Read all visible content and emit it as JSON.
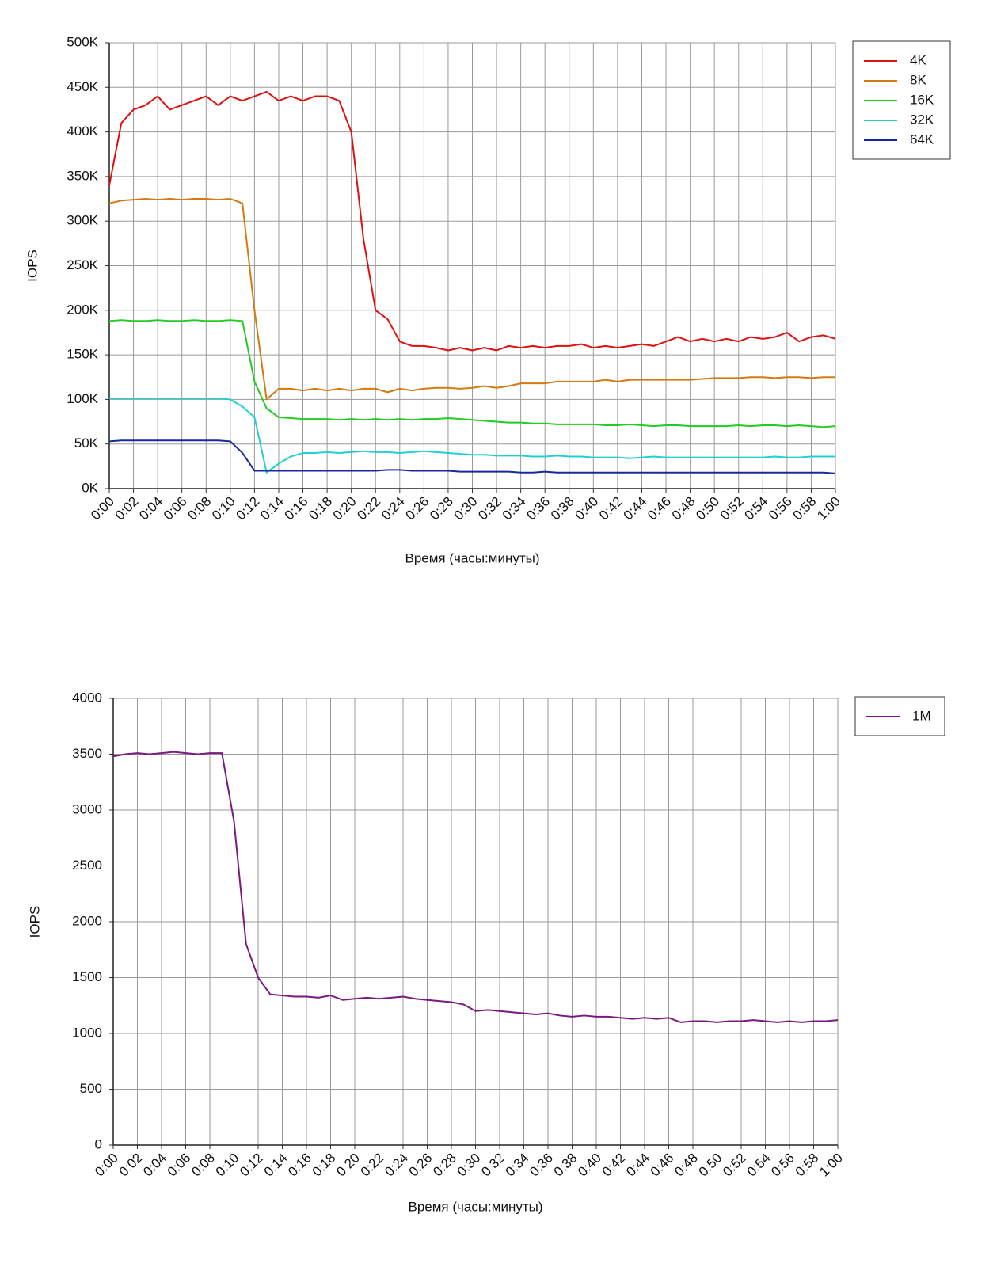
{
  "chart_data": [
    {
      "type": "line",
      "ylabel": "IOPS",
      "xlabel": "Время (часы:минуты)",
      "grid": true,
      "legend": "right",
      "x": [
        0,
        1,
        2,
        3,
        4,
        5,
        6,
        7,
        8,
        9,
        10,
        11,
        12,
        13,
        14,
        15,
        16,
        17,
        18,
        19,
        20,
        21,
        22,
        23,
        24,
        25,
        26,
        27,
        28,
        29,
        30,
        31,
        32,
        33,
        34,
        35,
        36,
        37,
        38,
        39,
        40,
        41,
        42,
        43,
        44,
        45,
        46,
        47,
        48,
        49,
        50,
        51,
        52,
        53,
        54,
        55,
        56,
        57,
        58,
        59,
        60
      ],
      "xlim": [
        0,
        60
      ],
      "xticks": [
        {
          "value": 0,
          "label": "0:00"
        },
        {
          "value": 2,
          "label": "0:02"
        },
        {
          "value": 4,
          "label": "0:04"
        },
        {
          "value": 6,
          "label": "0:06"
        },
        {
          "value": 8,
          "label": "0:08"
        },
        {
          "value": 10,
          "label": "0:10"
        },
        {
          "value": 12,
          "label": "0:12"
        },
        {
          "value": 14,
          "label": "0:14"
        },
        {
          "value": 16,
          "label": "0:16"
        },
        {
          "value": 18,
          "label": "0:18"
        },
        {
          "value": 20,
          "label": "0:20"
        },
        {
          "value": 22,
          "label": "0:22"
        },
        {
          "value": 24,
          "label": "0:24"
        },
        {
          "value": 26,
          "label": "0:26"
        },
        {
          "value": 28,
          "label": "0:28"
        },
        {
          "value": 30,
          "label": "0:30"
        },
        {
          "value": 32,
          "label": "0:32"
        },
        {
          "value": 34,
          "label": "0:34"
        },
        {
          "value": 36,
          "label": "0:36"
        },
        {
          "value": 38,
          "label": "0:38"
        },
        {
          "value": 40,
          "label": "0:40"
        },
        {
          "value": 42,
          "label": "0:42"
        },
        {
          "value": 44,
          "label": "0:44"
        },
        {
          "value": 46,
          "label": "0:46"
        },
        {
          "value": 48,
          "label": "0:48"
        },
        {
          "value": 50,
          "label": "0:50"
        },
        {
          "value": 52,
          "label": "0:52"
        },
        {
          "value": 54,
          "label": "0:54"
        },
        {
          "value": 56,
          "label": "0:56"
        },
        {
          "value": 58,
          "label": "0:58"
        },
        {
          "value": 60,
          "label": "1:00"
        }
      ],
      "ylim": [
        0,
        500000
      ],
      "yticks": [
        {
          "value": 0,
          "label": "0K"
        },
        {
          "value": 50000,
          "label": "50K"
        },
        {
          "value": 100000,
          "label": "100K"
        },
        {
          "value": 150000,
          "label": "150K"
        },
        {
          "value": 200000,
          "label": "200K"
        },
        {
          "value": 250000,
          "label": "250K"
        },
        {
          "value": 300000,
          "label": "300K"
        },
        {
          "value": 350000,
          "label": "350K"
        },
        {
          "value": 400000,
          "label": "400K"
        },
        {
          "value": 450000,
          "label": "450K"
        },
        {
          "value": 500000,
          "label": "500K"
        }
      ],
      "series": [
        {
          "name": "4K",
          "color": "#e01010",
          "values": [
            340000,
            410000,
            425000,
            430000,
            440000,
            425000,
            430000,
            435000,
            440000,
            430000,
            440000,
            435000,
            440000,
            445000,
            435000,
            440000,
            435000,
            440000,
            440000,
            435000,
            400000,
            280000,
            200000,
            190000,
            165000,
            160000,
            160000,
            158000,
            155000,
            158000,
            155000,
            158000,
            155000,
            160000,
            158000,
            160000,
            158000,
            160000,
            160000,
            162000,
            158000,
            160000,
            158000,
            160000,
            162000,
            160000,
            165000,
            170000,
            165000,
            168000,
            165000,
            168000,
            165000,
            170000,
            168000,
            170000,
            175000,
            165000,
            170000,
            172000,
            168000
          ]
        },
        {
          "name": "8K",
          "color": "#d47a10",
          "values": [
            320000,
            323000,
            324000,
            325000,
            324000,
            325000,
            324000,
            325000,
            325000,
            324000,
            325000,
            320000,
            200000,
            100000,
            112000,
            112000,
            110000,
            112000,
            110000,
            112000,
            110000,
            112000,
            112000,
            108000,
            112000,
            110000,
            112000,
            113000,
            113000,
            112000,
            113000,
            115000,
            113000,
            115000,
            118000,
            118000,
            118000,
            120000,
            120000,
            120000,
            120000,
            122000,
            120000,
            122000,
            122000,
            122000,
            122000,
            122000,
            122000,
            123000,
            124000,
            124000,
            124000,
            125000,
            125000,
            124000,
            125000,
            125000,
            124000,
            125000,
            125000
          ]
        },
        {
          "name": "16K",
          "color": "#22cc22",
          "values": [
            188000,
            189000,
            188000,
            188000,
            189000,
            188000,
            188000,
            189000,
            188000,
            188000,
            189000,
            188000,
            120000,
            90000,
            80000,
            79000,
            78000,
            78000,
            78000,
            77000,
            78000,
            77000,
            78000,
            77000,
            78000,
            77000,
            78000,
            78000,
            79000,
            78000,
            77000,
            76000,
            75000,
            74000,
            74000,
            73000,
            73000,
            72000,
            72000,
            72000,
            72000,
            71000,
            71000,
            72000,
            71000,
            70000,
            71000,
            71000,
            70000,
            70000,
            70000,
            70000,
            71000,
            70000,
            71000,
            71000,
            70000,
            71000,
            70000,
            69000,
            70000
          ]
        },
        {
          "name": "32K",
          "color": "#22d0d0",
          "values": [
            101000,
            101000,
            101000,
            101000,
            101000,
            101000,
            101000,
            101000,
            101000,
            101000,
            100000,
            92000,
            80000,
            18000,
            28000,
            36000,
            40000,
            40000,
            41000,
            40000,
            41000,
            42000,
            41000,
            41000,
            40000,
            41000,
            42000,
            41000,
            40000,
            39000,
            38000,
            38000,
            37000,
            37000,
            37000,
            36000,
            36000,
            37000,
            36000,
            36000,
            35000,
            35000,
            35000,
            34000,
            35000,
            36000,
            35000,
            35000,
            35000,
            35000,
            35000,
            35000,
            35000,
            35000,
            35000,
            36000,
            35000,
            35000,
            36000,
            36000,
            36000
          ]
        },
        {
          "name": "64K",
          "color": "#1a28a0",
          "values": [
            53000,
            54000,
            54000,
            54000,
            54000,
            54000,
            54000,
            54000,
            54000,
            54000,
            53000,
            40000,
            20000,
            20000,
            20000,
            20000,
            20000,
            20000,
            20000,
            20000,
            20000,
            20000,
            20000,
            21000,
            21000,
            20000,
            20000,
            20000,
            20000,
            19000,
            19000,
            19000,
            19000,
            19000,
            18000,
            18000,
            19000,
            18000,
            18000,
            18000,
            18000,
            18000,
            18000,
            18000,
            18000,
            18000,
            18000,
            18000,
            18000,
            18000,
            18000,
            18000,
            18000,
            18000,
            18000,
            18000,
            18000,
            18000,
            18000,
            18000,
            17000
          ]
        }
      ]
    },
    {
      "type": "line",
      "ylabel": "IOPS",
      "xlabel": "Время (часы:минуты)",
      "grid": true,
      "legend": "right",
      "x": [
        0,
        1,
        2,
        3,
        4,
        5,
        6,
        7,
        8,
        9,
        10,
        11,
        12,
        13,
        14,
        15,
        16,
        17,
        18,
        19,
        20,
        21,
        22,
        23,
        24,
        25,
        26,
        27,
        28,
        29,
        30,
        31,
        32,
        33,
        34,
        35,
        36,
        37,
        38,
        39,
        40,
        41,
        42,
        43,
        44,
        45,
        46,
        47,
        48,
        49,
        50,
        51,
        52,
        53,
        54,
        55,
        56,
        57,
        58,
        59,
        60
      ],
      "xlim": [
        0,
        60
      ],
      "xticks": [
        {
          "value": 0,
          "label": "0:00"
        },
        {
          "value": 2,
          "label": "0:02"
        },
        {
          "value": 4,
          "label": "0:04"
        },
        {
          "value": 6,
          "label": "0:06"
        },
        {
          "value": 8,
          "label": "0:08"
        },
        {
          "value": 10,
          "label": "0:10"
        },
        {
          "value": 12,
          "label": "0:12"
        },
        {
          "value": 14,
          "label": "0:14"
        },
        {
          "value": 16,
          "label": "0:16"
        },
        {
          "value": 18,
          "label": "0:18"
        },
        {
          "value": 20,
          "label": "0:20"
        },
        {
          "value": 22,
          "label": "0:22"
        },
        {
          "value": 24,
          "label": "0:24"
        },
        {
          "value": 26,
          "label": "0:26"
        },
        {
          "value": 28,
          "label": "0:28"
        },
        {
          "value": 30,
          "label": "0:30"
        },
        {
          "value": 32,
          "label": "0:32"
        },
        {
          "value": 34,
          "label": "0:34"
        },
        {
          "value": 36,
          "label": "0:36"
        },
        {
          "value": 38,
          "label": "0:38"
        },
        {
          "value": 40,
          "label": "0:40"
        },
        {
          "value": 42,
          "label": "0:42"
        },
        {
          "value": 44,
          "label": "0:44"
        },
        {
          "value": 46,
          "label": "0:46"
        },
        {
          "value": 48,
          "label": "0:48"
        },
        {
          "value": 50,
          "label": "0:50"
        },
        {
          "value": 52,
          "label": "0:52"
        },
        {
          "value": 54,
          "label": "0:54"
        },
        {
          "value": 56,
          "label": "0:56"
        },
        {
          "value": 58,
          "label": "0:58"
        },
        {
          "value": 60,
          "label": "1:00"
        }
      ],
      "ylim": [
        0,
        4000
      ],
      "yticks": [
        0,
        500,
        1000,
        1500,
        2000,
        2500,
        3000,
        3500,
        4000
      ],
      "series": [
        {
          "name": "1M",
          "color": "#7a1a80",
          "values": [
            3480,
            3500,
            3510,
            3500,
            3510,
            3520,
            3510,
            3500,
            3510,
            3510,
            2900,
            1800,
            1500,
            1350,
            1340,
            1330,
            1330,
            1320,
            1340,
            1300,
            1310,
            1320,
            1310,
            1320,
            1330,
            1310,
            1300,
            1290,
            1280,
            1260,
            1200,
            1210,
            1200,
            1190,
            1180,
            1170,
            1180,
            1160,
            1150,
            1160,
            1150,
            1150,
            1140,
            1130,
            1140,
            1130,
            1140,
            1100,
            1110,
            1110,
            1100,
            1110,
            1110,
            1120,
            1110,
            1100,
            1110,
            1100,
            1110,
            1110,
            1120
          ]
        }
      ]
    }
  ]
}
